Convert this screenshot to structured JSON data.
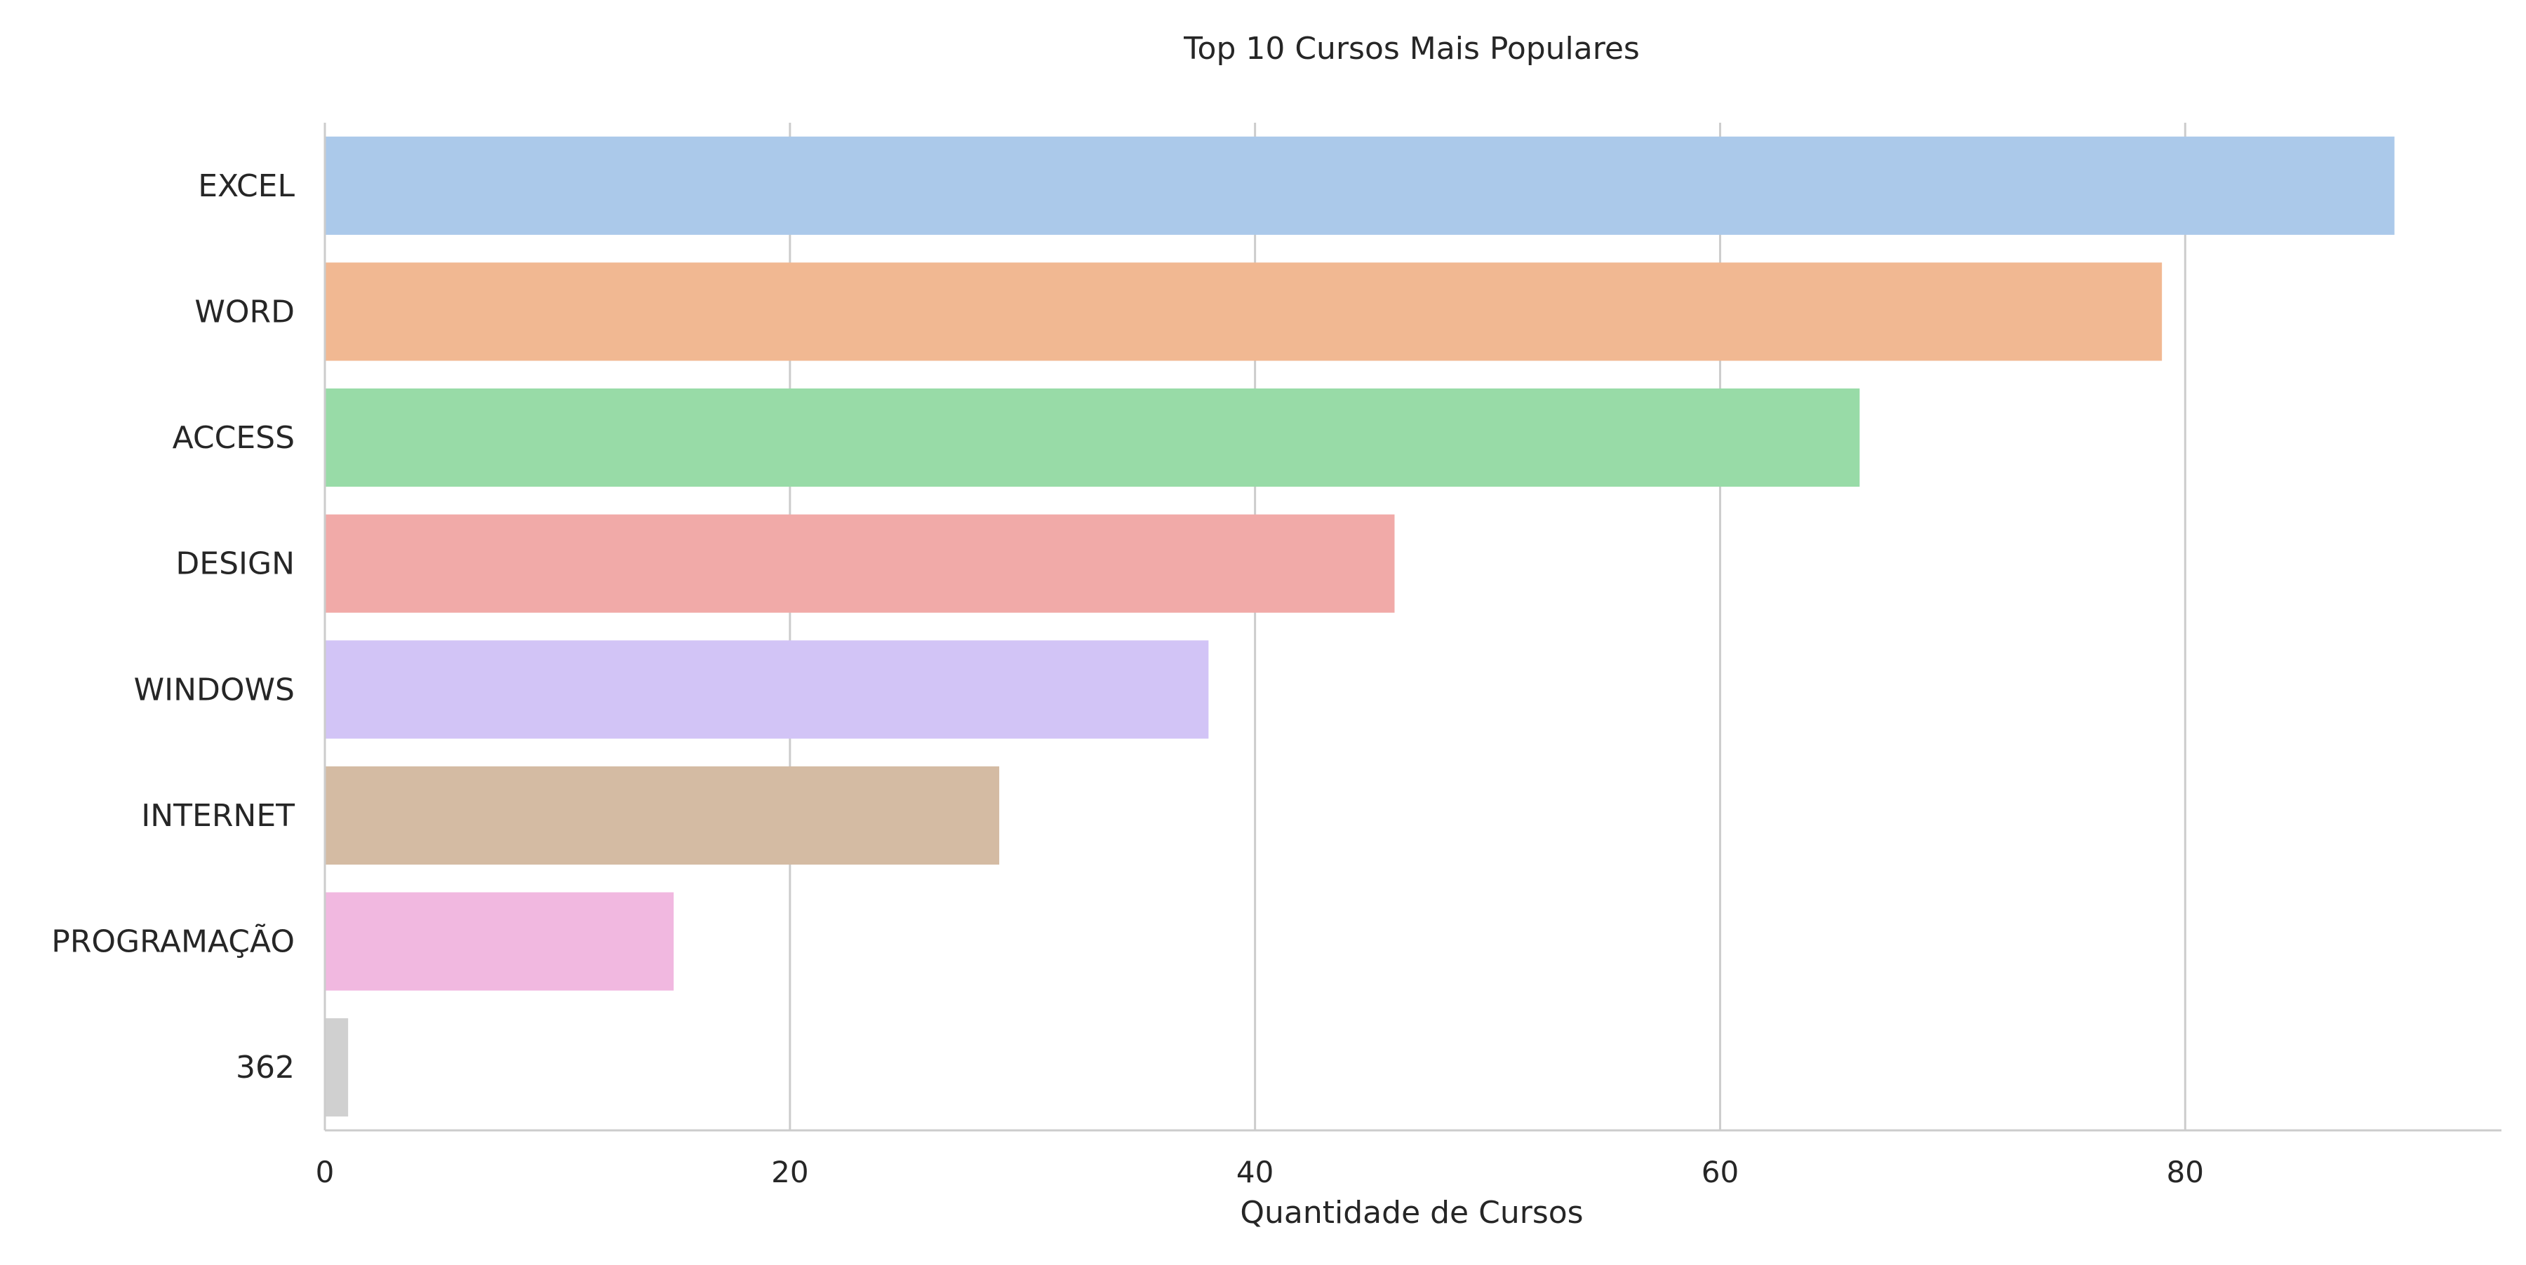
{
  "chart_data": {
    "type": "bar",
    "orientation": "horizontal",
    "title": "Top 10 Cursos Mais Populares",
    "xlabel": "Quantidade de Cursos",
    "ylabel": "",
    "categories": [
      "EXCEL",
      "WORD",
      "ACCESS",
      "DESIGN",
      "WINDOWS",
      "INTERNET",
      "PROGRAMAÇÃO",
      "362"
    ],
    "values": [
      89,
      79,
      66,
      46,
      38,
      29,
      15,
      1
    ],
    "colors": [
      "#abc9ea",
      "#f1b892",
      "#98dba7",
      "#f1aaa8",
      "#d2c4f6",
      "#d4bba3",
      "#f1b8e0",
      "#d0d0d0"
    ],
    "xlim": [
      0,
      93.6
    ],
    "xticks": [
      0,
      20,
      40,
      60,
      80
    ],
    "grid": "vertical",
    "grid_color": "#cccccc",
    "axis_color": "#cccccc"
  }
}
